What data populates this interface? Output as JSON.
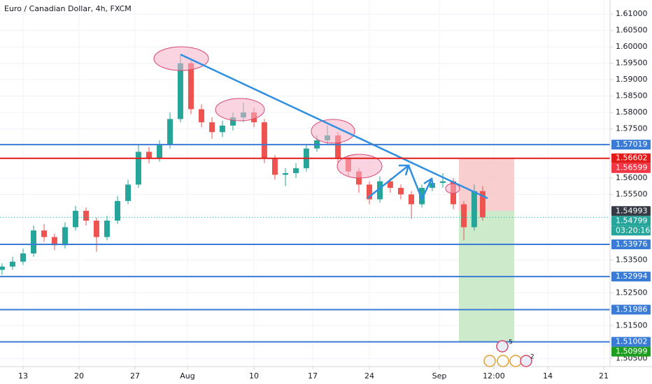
{
  "chart_data": {
    "type": "candlestick",
    "title": "Euro / Canadian Dollar, 4h, FXCM",
    "x": [
      -1.88,
      -0.94,
      0,
      0.94,
      1.88,
      2.81,
      3.75,
      4.69,
      5.63,
      6.56,
      7.5,
      8.44,
      9.38,
      10.31,
      11.25,
      12.19,
      13.13,
      14.06,
      15,
      15.94,
      16.88,
      17.81,
      18.75,
      19.69,
      20.63,
      21.56,
      22.5,
      23.44,
      24.38,
      25.31,
      26.25,
      27.19,
      28.13,
      29.06,
      30,
      30.94,
      31.88,
      32.81,
      33.75,
      34.69,
      35.63,
      36.56,
      37.5,
      38.44,
      39.38,
      40.31,
      41.06
    ],
    "open": [
      1.532,
      1.533,
      1.5345,
      1.537,
      1.544,
      1.542,
      1.5395,
      1.545,
      1.55,
      1.547,
      1.542,
      1.547,
      1.553,
      1.558,
      1.568,
      1.566,
      1.57,
      1.578,
      1.595,
      1.581,
      1.577,
      1.574,
      1.576,
      1.5785,
      1.58,
      1.577,
      1.566,
      1.561,
      1.5615,
      1.563,
      1.569,
      1.5715,
      1.573,
      1.566,
      1.562,
      1.558,
      1.5535,
      1.559,
      1.557,
      1.555,
      1.552,
      1.557,
      1.5585,
      1.559,
      1.552,
      1.545,
      1.556
    ],
    "high": [
      1.534,
      1.536,
      1.5385,
      1.5455,
      1.546,
      1.543,
      1.5465,
      1.5515,
      1.551,
      1.548,
      1.5485,
      1.5545,
      1.5595,
      1.57,
      1.5695,
      1.5715,
      1.58,
      1.5975,
      1.596,
      1.5825,
      1.5785,
      1.5775,
      1.58,
      1.583,
      1.5815,
      1.578,
      1.567,
      1.563,
      1.5645,
      1.5705,
      1.573,
      1.576,
      1.574,
      1.567,
      1.563,
      1.559,
      1.5605,
      1.56,
      1.558,
      1.556,
      1.558,
      1.56,
      1.5615,
      1.56,
      1.553,
      1.558,
      1.5575
    ],
    "low": [
      1.5305,
      1.532,
      1.5335,
      1.536,
      1.5405,
      1.538,
      1.5385,
      1.544,
      1.5455,
      1.5375,
      1.541,
      1.546,
      1.552,
      1.557,
      1.5645,
      1.565,
      1.569,
      1.577,
      1.5795,
      1.5755,
      1.572,
      1.5725,
      1.5745,
      1.577,
      1.5755,
      1.5645,
      1.5595,
      1.5575,
      1.56,
      1.562,
      1.568,
      1.57,
      1.5645,
      1.5605,
      1.5555,
      1.552,
      1.5525,
      1.5555,
      1.5535,
      1.5475,
      1.551,
      1.556,
      1.557,
      1.5505,
      1.541,
      1.544,
      1.547
    ],
    "close": [
      1.533,
      1.5345,
      1.537,
      1.544,
      1.542,
      1.5395,
      1.545,
      1.55,
      1.547,
      1.542,
      1.547,
      1.553,
      1.558,
      1.568,
      1.566,
      1.57,
      1.578,
      1.595,
      1.581,
      1.577,
      1.574,
      1.576,
      1.5785,
      1.58,
      1.577,
      1.566,
      1.561,
      1.5615,
      1.563,
      1.569,
      1.5715,
      1.573,
      1.566,
      1.562,
      1.558,
      1.5535,
      1.559,
      1.557,
      1.555,
      1.552,
      1.557,
      1.5585,
      1.559,
      1.552,
      1.545,
      1.556,
      1.548
    ],
    "up_color": "#26a69a",
    "down_color": "#ef5350",
    "xlim": [
      -2.06,
      52.44
    ],
    "ylim": [
      1.5025,
      1.6143
    ],
    "xticks": [
      {
        "value": 0,
        "label": "13"
      },
      {
        "value": 5,
        "label": "20"
      },
      {
        "value": 10,
        "label": "27"
      },
      {
        "value": 14.69,
        "label": "Aug"
      },
      {
        "value": 20.63,
        "label": "10"
      },
      {
        "value": 25.88,
        "label": "17"
      },
      {
        "value": 30.94,
        "label": "24"
      },
      {
        "value": 37.19,
        "label": "Sep"
      },
      {
        "value": 42.06,
        "label": "12:00"
      },
      {
        "value": 46.88,
        "label": "14"
      },
      {
        "value": 51.88,
        "label": "21"
      }
    ],
    "yticks": [
      {
        "value": 1.61,
        "label": "1.61000"
      },
      {
        "value": 1.605,
        "label": "1.60500"
      },
      {
        "value": 1.6,
        "label": "1.60000"
      },
      {
        "value": 1.595,
        "label": "1.59500"
      },
      {
        "value": 1.59,
        "label": "1.59000"
      },
      {
        "value": 1.585,
        "label": "1.58500"
      },
      {
        "value": 1.58,
        "label": "1.58000"
      },
      {
        "value": 1.575,
        "label": "1.57500"
      },
      {
        "value": 1.56,
        "label": "1.56000"
      },
      {
        "value": 1.555,
        "label": "1.55500"
      },
      {
        "value": 1.535,
        "label": "1.53500"
      },
      {
        "value": 1.525,
        "label": "1.52500"
      },
      {
        "value": 1.515,
        "label": "1.51500"
      },
      {
        "value": 1.505,
        "label": "1.50500"
      }
    ],
    "grid": true,
    "levels": [
      {
        "value": 1.57019,
        "color": "#3a7bd5",
        "style": "solid"
      },
      {
        "value": 1.56602,
        "color": "#e31a1a",
        "style": "solid"
      },
      {
        "value": 1.56599,
        "color": "#f23645",
        "style": "none"
      },
      {
        "value": 1.54993,
        "color": "#363a45",
        "style": "none"
      },
      {
        "value": 1.54799,
        "color": "#26a69a",
        "style": "dotted"
      },
      {
        "value": 1.53976,
        "color": "#3a7bd5",
        "style": "solid"
      },
      {
        "value": 1.52994,
        "color": "#3a7bd5",
        "style": "solid"
      },
      {
        "value": 1.51986,
        "color": "#3a7bd5",
        "style": "solid"
      },
      {
        "value": 1.51002,
        "color": "#3a7bd5",
        "style": "solid"
      },
      {
        "value": 1.50999,
        "color": "#1e9e1e",
        "style": "none"
      }
    ],
    "countdown": "03:20:16",
    "event_badges": [
      "5",
      "2"
    ]
  }
}
